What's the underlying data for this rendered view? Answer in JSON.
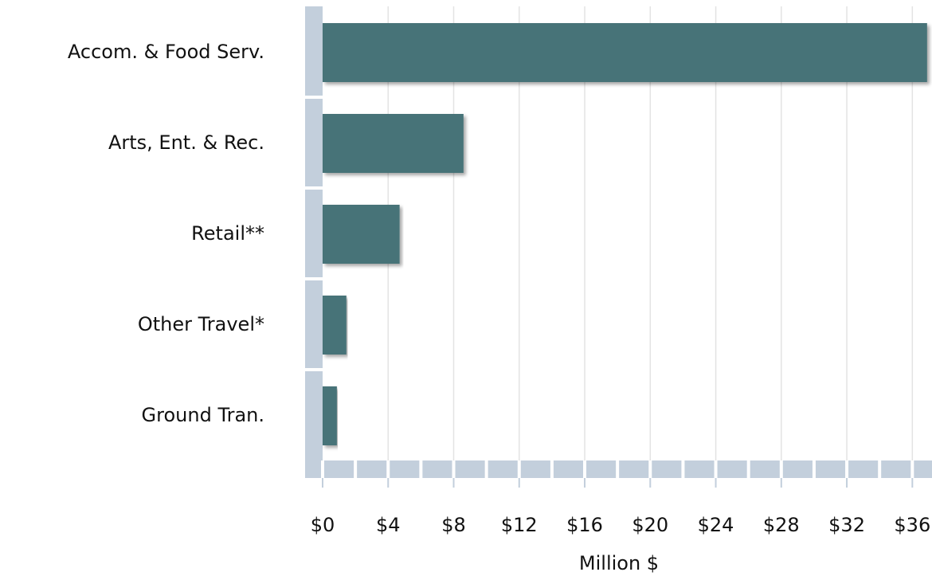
{
  "chart_data": {
    "type": "bar",
    "orientation": "horizontal",
    "categories": [
      "Accom. & Food Serv.",
      "Arts, Ent. & Rec.",
      "Retail**",
      "Other Travel*",
      "Ground Tran."
    ],
    "values": [
      36.9,
      8.6,
      4.7,
      1.45,
      0.87
    ],
    "color": "#467378",
    "xlabel": "Million $",
    "xlim": [
      0,
      37.2
    ],
    "xticks": [
      {
        "value": 0,
        "label": "$0"
      },
      {
        "value": 4,
        "label": "$4"
      },
      {
        "value": 8,
        "label": "$8"
      },
      {
        "value": 12,
        "label": "$12"
      },
      {
        "value": 16,
        "label": "$16"
      },
      {
        "value": 20,
        "label": "$20"
      },
      {
        "value": 24,
        "label": "$24"
      },
      {
        "value": 28,
        "label": "$28"
      },
      {
        "value": 32,
        "label": "$32"
      },
      {
        "value": 36,
        "label": "$36"
      }
    ],
    "grid": true
  }
}
